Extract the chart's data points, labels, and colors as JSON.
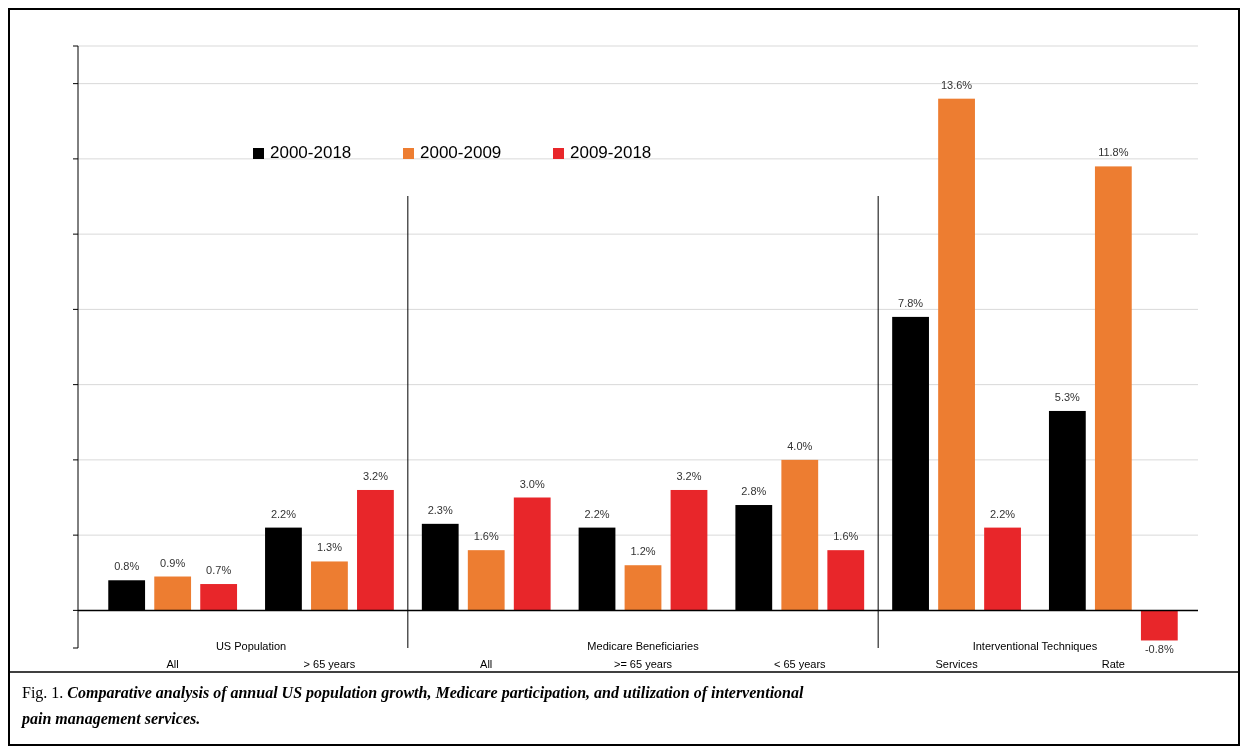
{
  "chart_data": {
    "type": "bar",
    "title": "Fig. 1. Comparative analysis of annual US population growth, Medicare participation, and utilization of interventional pain management services.",
    "categories": [
      "All",
      "> 65 years",
      "All",
      ">= 65 years",
      "< 65 years",
      "Services",
      "Rate"
    ],
    "series": [
      {
        "name": "2000-2018",
        "color": "#000000",
        "values": [
          0.8,
          2.2,
          2.3,
          2.2,
          2.8,
          7.8,
          5.3
        ],
        "value_labels": [
          "0.8%",
          "2.2%",
          "2.3%",
          "2.2%",
          "2.8%",
          "7.8%",
          "5.3%"
        ]
      },
      {
        "name": "2000-2009",
        "color": "#ed7d31",
        "values": [
          0.9,
          1.3,
          1.6,
          1.2,
          4.0,
          13.6,
          11.8
        ],
        "value_labels": [
          "0.9%",
          "1.3%",
          "1.6%",
          "1.2%",
          "4.0%",
          "13.6%",
          "11.8%"
        ]
      },
      {
        "name": "2009-2018",
        "color": "#e8262a",
        "values": [
          0.7,
          3.2,
          3.0,
          3.2,
          1.6,
          2.2,
          -0.8
        ],
        "value_labels": [
          "0.7%",
          "3.2%",
          "3.0%",
          "3.2%",
          "1.6%",
          "2.2%",
          "-0.8%"
        ]
      }
    ],
    "annotations": [
      "US Population",
      "Medicare Beneficiaries",
      "Interventional Techniques"
    ],
    "ylim": [
      -1,
      15
    ],
    "yticks": [
      {
        "value": -1,
        "label": null
      },
      {
        "value": 0,
        "label": null
      },
      {
        "value": 2,
        "label": null
      },
      {
        "value": 4,
        "label": null
      },
      {
        "value": 6,
        "label": null
      },
      {
        "value": 8,
        "label": null
      },
      {
        "value": 10,
        "label": null
      },
      {
        "value": 12,
        "label": null
      },
      {
        "value": 14,
        "label": null
      },
      {
        "value": 15,
        "label": null
      }
    ],
    "grid": "y",
    "legend": "top"
  }
}
